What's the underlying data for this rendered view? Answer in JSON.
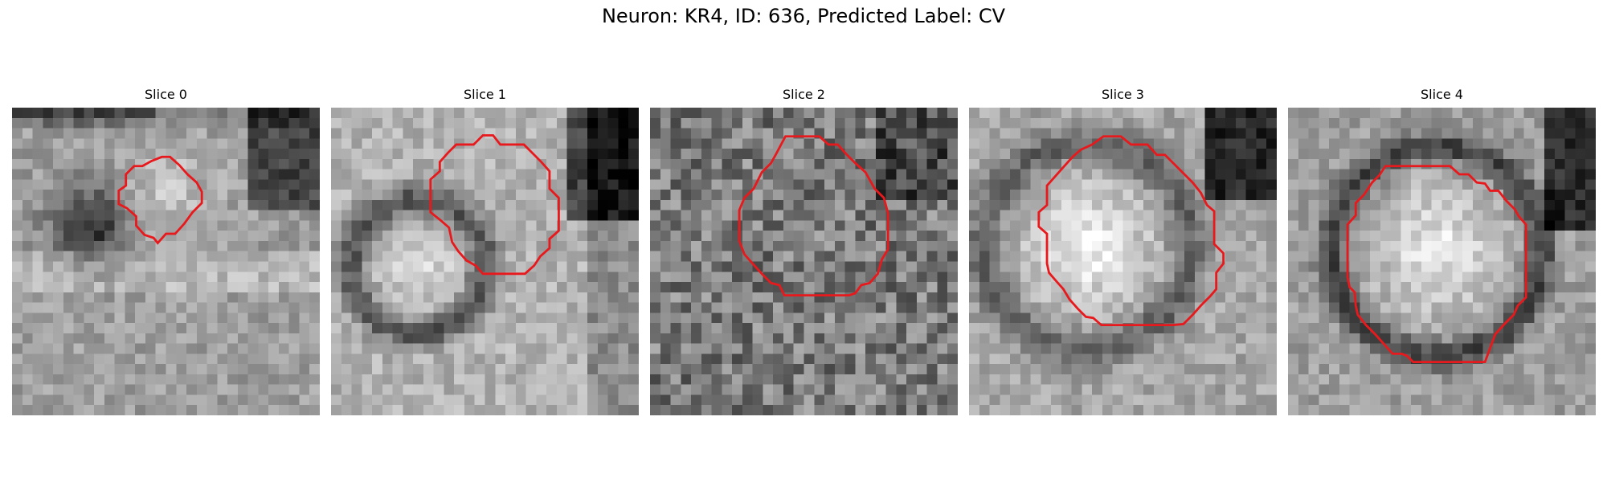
{
  "figure": {
    "title": "Neuron: KR4, ID: 636, Predicted Label: CV",
    "contour_color": "#e8191c",
    "colormap": "grayscale"
  },
  "panels": [
    {
      "title": "Slice 0",
      "seed": 11,
      "pattern": "ring-left"
    },
    {
      "title": "Slice 1",
      "seed": 23,
      "pattern": "ring-center"
    },
    {
      "title": "Slice 2",
      "seed": 37,
      "pattern": "noisy"
    },
    {
      "title": "Slice 3",
      "seed": 41,
      "pattern": "bright-disc"
    },
    {
      "title": "Slice 4",
      "seed": 53,
      "pattern": "bright-disc-dark-rim"
    }
  ]
}
